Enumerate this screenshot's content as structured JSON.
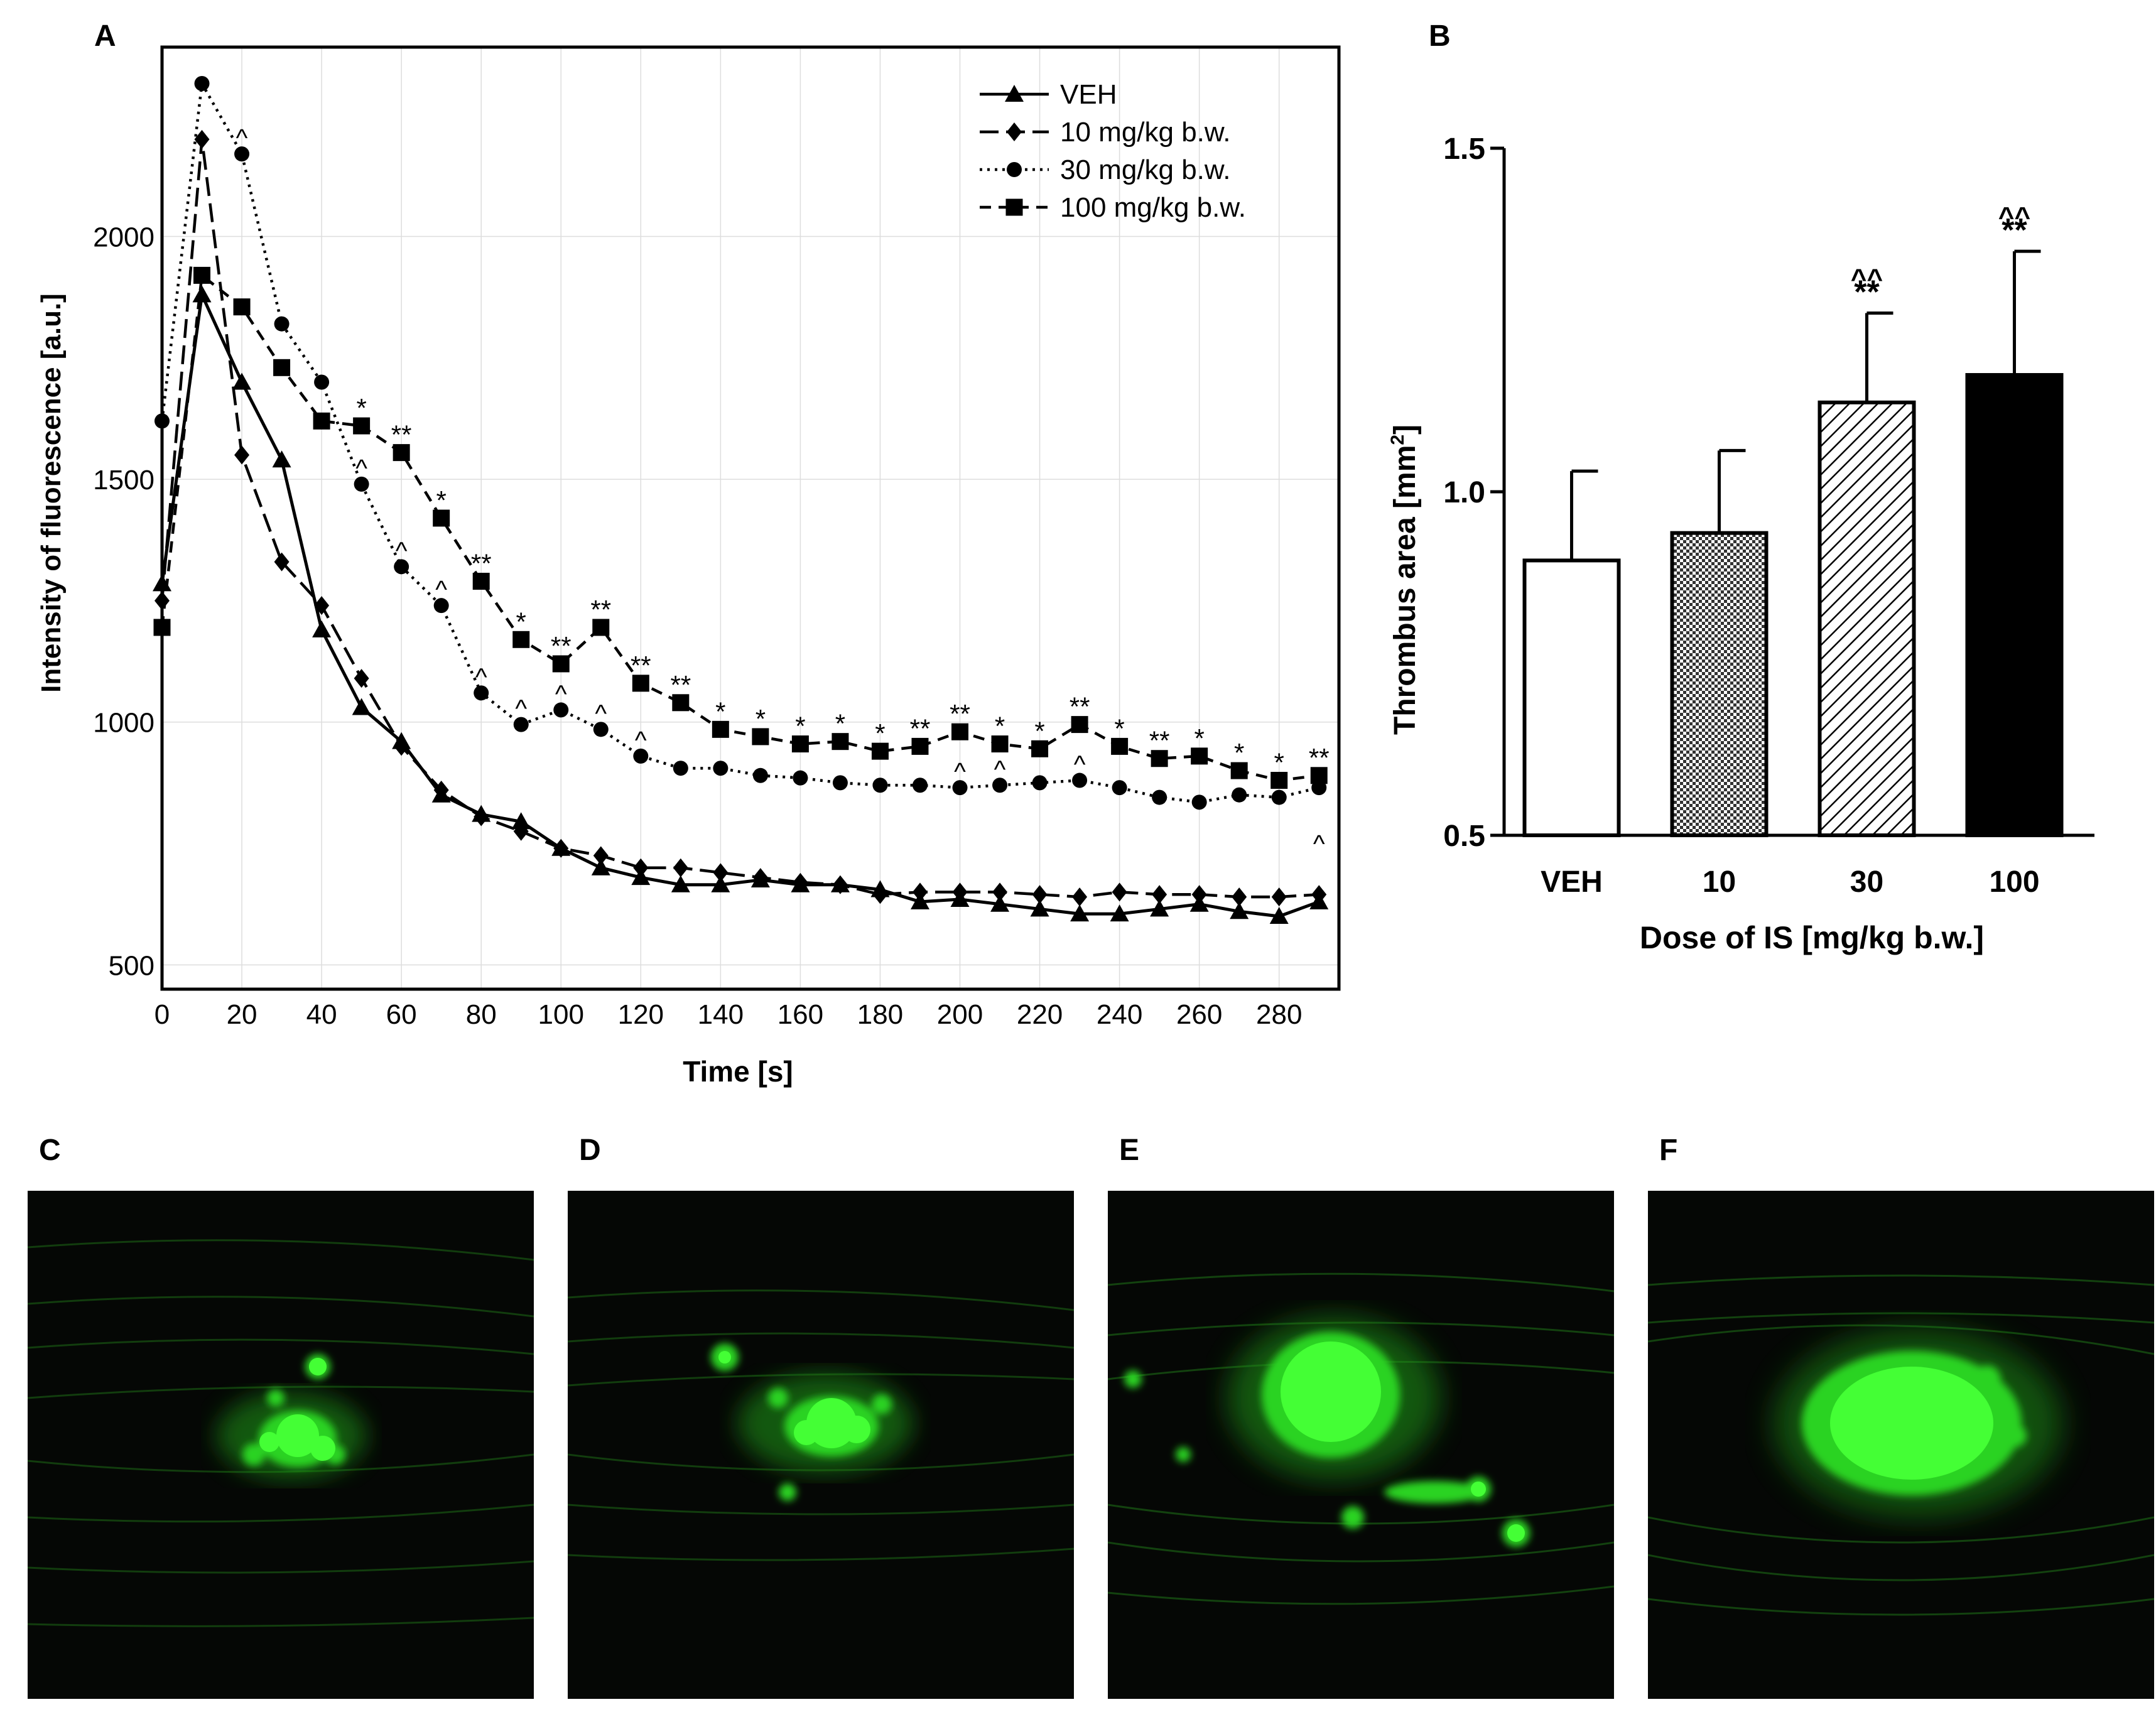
{
  "panels": {
    "a": "A",
    "b": "B",
    "c": "C",
    "d": "D",
    "e": "E",
    "f": "F"
  },
  "colors": {
    "ink": "#000000",
    "grid": "#dddddd",
    "fluor": "#2bd321",
    "bg": "#050705"
  },
  "chart_data": [
    {
      "id": "A",
      "type": "line",
      "title": "",
      "xlabel": "Time [s]",
      "ylabel": "Intensity of fluorescence [a.u.]",
      "xlim": [
        0,
        295
      ],
      "ylim": [
        450,
        2390
      ],
      "x_ticks": [
        0,
        20,
        40,
        60,
        80,
        100,
        120,
        140,
        160,
        180,
        200,
        220,
        240,
        260,
        280
      ],
      "y_ticks": [
        500,
        1000,
        1500,
        2000
      ],
      "grid": true,
      "legend_position": "top-right",
      "x": [
        0,
        10,
        20,
        30,
        40,
        50,
        60,
        70,
        80,
        90,
        100,
        110,
        120,
        130,
        140,
        150,
        160,
        170,
        180,
        190,
        200,
        210,
        220,
        230,
        240,
        250,
        260,
        270,
        280,
        290
      ],
      "series": [
        {
          "name": "VEH",
          "marker": "triangle",
          "dash": "solid",
          "values": [
            1285,
            1880,
            1700,
            1540,
            1190,
            1030,
            960,
            850,
            810,
            795,
            740,
            700,
            680,
            665,
            665,
            675,
            665,
            665,
            655,
            630,
            635,
            625,
            615,
            605,
            605,
            615,
            625,
            610,
            600,
            630
          ]
        },
        {
          "name": "10 mg/kg b.w.",
          "marker": "diamond",
          "dash": "long",
          "values": [
            1250,
            2200,
            1550,
            1330,
            1240,
            1090,
            950,
            860,
            805,
            775,
            740,
            725,
            700,
            700,
            690,
            680,
            670,
            665,
            645,
            650,
            650,
            650,
            645,
            640,
            650,
            645,
            645,
            640,
            640,
            645
          ]
        },
        {
          "name": "30 mg/kg b.w.",
          "marker": "circle",
          "dash": "dotted",
          "values": [
            1620,
            2315,
            2170,
            1820,
            1700,
            1490,
            1320,
            1240,
            1060,
            995,
            1025,
            985,
            930,
            905,
            905,
            890,
            885,
            875,
            870,
            870,
            865,
            870,
            875,
            880,
            865,
            845,
            835,
            850,
            845,
            865
          ]
        },
        {
          "name": "100 mg/kg b.w.",
          "marker": "square",
          "dash": "short",
          "values": [
            1195,
            1920,
            1855,
            1730,
            1620,
            1610,
            1555,
            1420,
            1290,
            1170,
            1120,
            1195,
            1080,
            1040,
            985,
            970,
            955,
            960,
            940,
            950,
            980,
            955,
            945,
            995,
            950,
            925,
            930,
            900,
            880,
            890
          ]
        }
      ],
      "annotations": [
        {
          "x": 20,
          "y": 2170,
          "text": "^"
        },
        {
          "x": 50,
          "y": 1610,
          "text": "*"
        },
        {
          "x": 50,
          "y": 1490,
          "text": "^"
        },
        {
          "x": 60,
          "y": 1555,
          "text": "**"
        },
        {
          "x": 60,
          "y": 1320,
          "text": "^"
        },
        {
          "x": 70,
          "y": 1420,
          "text": "*"
        },
        {
          "x": 70,
          "y": 1240,
          "text": "^"
        },
        {
          "x": 80,
          "y": 1290,
          "text": "**"
        },
        {
          "x": 80,
          "y": 1060,
          "text": "^"
        },
        {
          "x": 90,
          "y": 1170,
          "text": "*"
        },
        {
          "x": 90,
          "y": 995,
          "text": "^"
        },
        {
          "x": 100,
          "y": 1120,
          "text": "**"
        },
        {
          "x": 100,
          "y": 1025,
          "text": "^"
        },
        {
          "x": 110,
          "y": 1195,
          "text": "**"
        },
        {
          "x": 110,
          "y": 985,
          "text": "^"
        },
        {
          "x": 120,
          "y": 1080,
          "text": "**"
        },
        {
          "x": 120,
          "y": 930,
          "text": "^"
        },
        {
          "x": 130,
          "y": 1040,
          "text": "**"
        },
        {
          "x": 140,
          "y": 985,
          "text": "*"
        },
        {
          "x": 150,
          "y": 970,
          "text": "*"
        },
        {
          "x": 160,
          "y": 955,
          "text": "*"
        },
        {
          "x": 170,
          "y": 960,
          "text": "*"
        },
        {
          "x": 180,
          "y": 940,
          "text": "*"
        },
        {
          "x": 190,
          "y": 950,
          "text": "**"
        },
        {
          "x": 200,
          "y": 980,
          "text": "**"
        },
        {
          "x": 200,
          "y": 865,
          "text": "^"
        },
        {
          "x": 210,
          "y": 955,
          "text": "*"
        },
        {
          "x": 210,
          "y": 870,
          "text": "^"
        },
        {
          "x": 220,
          "y": 945,
          "text": "*"
        },
        {
          "x": 230,
          "y": 995,
          "text": "**"
        },
        {
          "x": 230,
          "y": 880,
          "text": "^"
        },
        {
          "x": 240,
          "y": 950,
          "text": "*"
        },
        {
          "x": 250,
          "y": 925,
          "text": "**"
        },
        {
          "x": 260,
          "y": 930,
          "text": "*"
        },
        {
          "x": 270,
          "y": 900,
          "text": "*"
        },
        {
          "x": 280,
          "y": 880,
          "text": "*"
        },
        {
          "x": 290,
          "y": 890,
          "text": "**"
        },
        {
          "x": 290,
          "y": 825,
          "text": "^",
          "below": true
        }
      ]
    },
    {
      "id": "B",
      "type": "bar",
      "title": "",
      "xlabel": "Dose of IS [mg/kg b.w.]",
      "ylabel_main": "Thrombus area [mm",
      "ylabel_sup": "2",
      "ylabel_end": "]",
      "ylim": [
        0.5,
        1.5
      ],
      "y_ticks": [
        "0.5",
        "1.0",
        "1.5"
      ],
      "categories": [
        "VEH",
        "10",
        "30",
        "100"
      ],
      "values": [
        0.9,
        0.94,
        1.13,
        1.17
      ],
      "errors": [
        0.13,
        0.12,
        0.13,
        0.18
      ],
      "fills": [
        "white",
        "checker",
        "hatch",
        "black"
      ],
      "significance": [
        {
          "stars": "",
          "carets": ""
        },
        {
          "stars": "",
          "carets": ""
        },
        {
          "stars": "**",
          "carets": "^^"
        },
        {
          "stars": "**",
          "carets": "^^"
        }
      ]
    }
  ]
}
